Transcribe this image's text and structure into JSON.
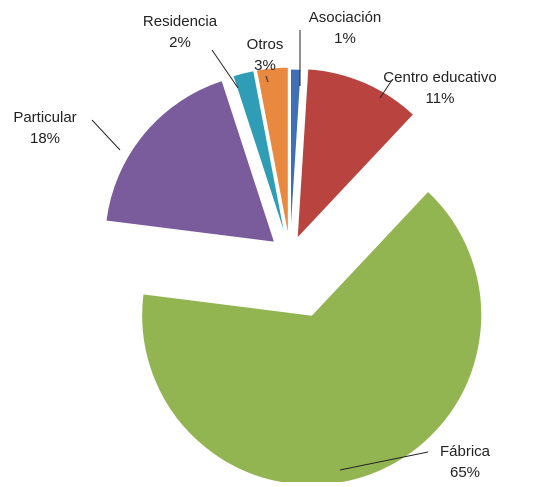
{
  "chart_data": {
    "type": "pie",
    "categories": [
      "Asociación",
      "Centro educativo",
      "Fábrica",
      "Particular",
      "Residencia",
      "Otros"
    ],
    "values": [
      1,
      11,
      65,
      18,
      2,
      3
    ],
    "value_labels": [
      "1%",
      "11%",
      "65%",
      "18%",
      "2%",
      "3%"
    ],
    "colors": [
      "#3f6fb6",
      "#b8433f",
      "#92b552",
      "#7a5c9c",
      "#2e9db5",
      "#e8893f"
    ]
  }
}
